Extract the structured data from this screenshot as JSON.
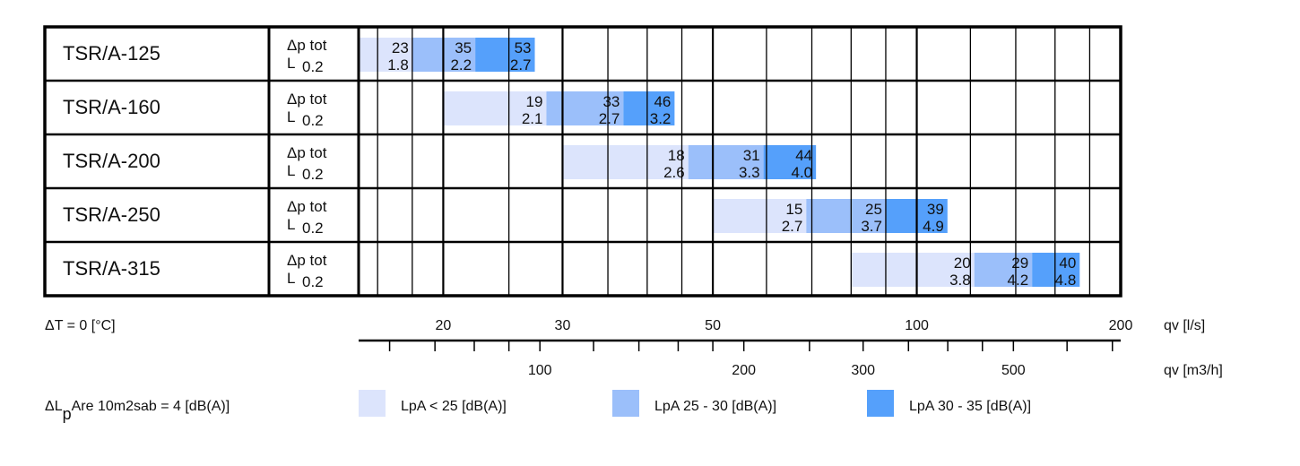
{
  "chart_data": {
    "type": "bar",
    "subtype": "horizontal-range-selection-chart",
    "x_scale": "log",
    "xlim": [
      15,
      200
    ],
    "x_unit_primary": "qv [l/s]",
    "x_unit_secondary": "qv [m3/h]",
    "primary_ticks": [
      20,
      30,
      50,
      100,
      200
    ],
    "primary_minor": [
      16,
      18,
      25,
      35,
      40,
      45,
      60,
      70,
      80,
      90,
      120,
      140,
      160,
      180
    ],
    "secondary_ticks_labeled": [
      100,
      200,
      300,
      500
    ],
    "secondary_ticks": [
      60,
      70,
      80,
      90,
      100,
      120,
      140,
      160,
      180,
      200,
      250,
      300,
      350,
      400,
      450,
      500,
      600,
      700
    ],
    "row_label_top": "Δp tot",
    "row_label_bottom_prefix": "L",
    "row_label_bottom_value": "0.2",
    "rows": [
      {
        "name": "TSR/A-125",
        "segments": [
          {
            "from": 15,
            "to": 18,
            "dp": "23",
            "L": "1.8",
            "level": 0
          },
          {
            "from": 18,
            "to": 22.3,
            "dp": "35",
            "L": "2.2",
            "level": 1
          },
          {
            "from": 22.3,
            "to": 27.3,
            "dp": "53",
            "L": "2.7",
            "level": 2
          }
        ]
      },
      {
        "name": "TSR/A-160",
        "segments": [
          {
            "from": 20,
            "to": 28.4,
            "dp": "19",
            "L": "2.1",
            "level": 0
          },
          {
            "from": 28.4,
            "to": 36.9,
            "dp": "33",
            "L": "2.7",
            "level": 1
          },
          {
            "from": 36.9,
            "to": 43.9,
            "dp": "46",
            "L": "3.2",
            "level": 2
          }
        ]
      },
      {
        "name": "TSR/A-200",
        "segments": [
          {
            "from": 30,
            "to": 46,
            "dp": "18",
            "L": "2.6",
            "level": 0
          },
          {
            "from": 46,
            "to": 59.4,
            "dp": "31",
            "L": "3.3",
            "level": 1
          },
          {
            "from": 59.4,
            "to": 71,
            "dp": "44",
            "L": "4.0",
            "level": 2
          }
        ]
      },
      {
        "name": "TSR/A-250",
        "segments": [
          {
            "from": 50,
            "to": 68.7,
            "dp": "15",
            "L": "2.7",
            "level": 0
          },
          {
            "from": 68.7,
            "to": 90,
            "dp": "25",
            "L": "3.7",
            "level": 1
          },
          {
            "from": 90,
            "to": 111,
            "dp": "39",
            "L": "4.9",
            "level": 2
          }
        ]
      },
      {
        "name": "TSR/A-315",
        "segments": [
          {
            "from": 80,
            "to": 121.6,
            "dp": "20",
            "L": "3.8",
            "level": 0
          },
          {
            "from": 121.6,
            "to": 148,
            "dp": "29",
            "L": "4.2",
            "level": 1
          },
          {
            "from": 148,
            "to": 174,
            "dp": "40",
            "L": "4.8",
            "level": 2
          }
        ]
      }
    ],
    "legend": [
      {
        "label": "LpA < 25 [dB(A)]",
        "color": "#dce4fc"
      },
      {
        "label": "LpA 25 - 30 [dB(A)]",
        "color": "#9bbffa"
      },
      {
        "label": "LpA 30 - 35 [dB(A)]",
        "color": "#55a0fb"
      }
    ],
    "legend_placement": "bottom",
    "notes": {
      "delta_t": "ΔT = 0 [°C]",
      "delta_l_prefix": "ΔL",
      "delta_l_sub": "p",
      "delta_l_suffix": "Are 10m2sab = 4 [dB(A)]"
    }
  }
}
